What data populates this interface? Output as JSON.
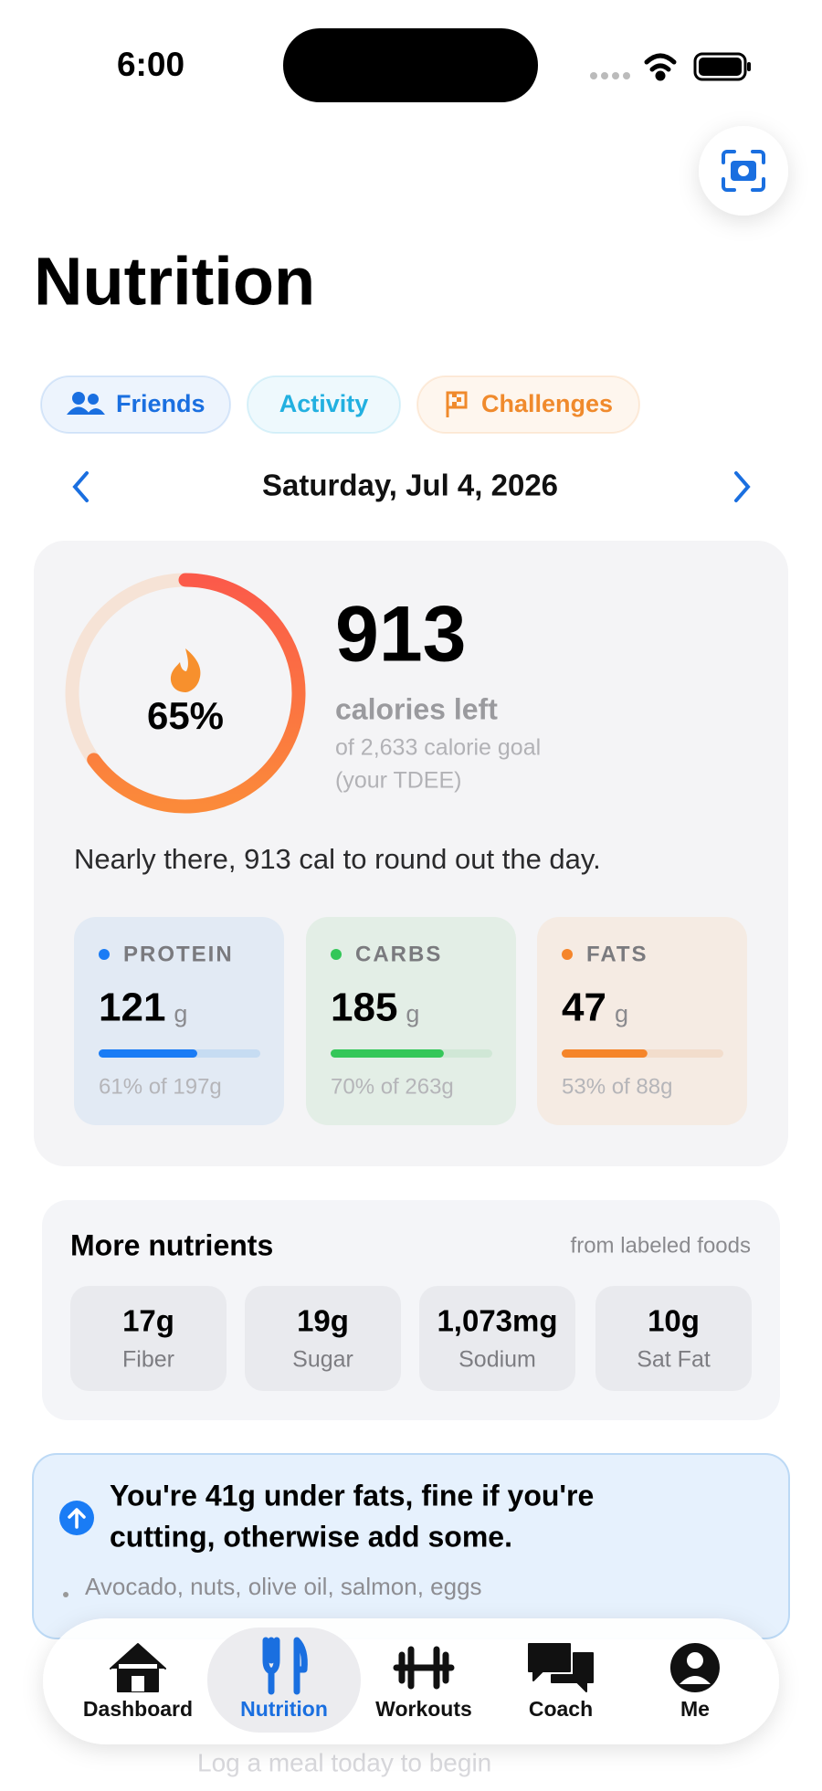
{
  "status_bar": {
    "time": "6:00"
  },
  "header": {
    "title": "Nutrition"
  },
  "chips": [
    {
      "label": "Friends",
      "color": "#1a6fe0"
    },
    {
      "label": "Activity",
      "color": "#22b0e0"
    },
    {
      "label": "Challenges",
      "color": "#f08a2c"
    }
  ],
  "date": "Saturday, Jul 4, 2026",
  "summary": {
    "ring_percent": 65,
    "ring_label": "65%",
    "calories_left": 913,
    "calories_caption": "calories left",
    "goal_text": "of 2,633 calorie goal",
    "goal_note": "(your TDEE)",
    "message": "Nearly there, 913 cal to round out the day."
  },
  "macros": [
    {
      "name": "PROTEIN",
      "value": 121,
      "unit": "g",
      "percent": 61,
      "foot": "61% of 197g",
      "color": "#1a7cf5",
      "bg": "#e2eaf4",
      "track": "#c6dcf2"
    },
    {
      "name": "CARBS",
      "value": 185,
      "unit": "g",
      "percent": 70,
      "foot": "70% of 263g",
      "color": "#34c759",
      "bg": "#e3eee6",
      "track": "#d0e7d6"
    },
    {
      "name": "FATS",
      "value": 47,
      "unit": "g",
      "percent": 53,
      "foot": "53% of 88g",
      "color": "#f5852a",
      "bg": "#f5ebe3",
      "track": "#f2ddcc"
    }
  ],
  "more_nutrients": {
    "title": "More nutrients",
    "note": "from labeled foods",
    "items": [
      {
        "value": "17g",
        "label": "Fiber"
      },
      {
        "value": "19g",
        "label": "Sugar"
      },
      {
        "value": "1,073mg",
        "label": "Sodium"
      },
      {
        "value": "10g",
        "label": "Sat Fat"
      }
    ]
  },
  "tip": {
    "lines": [
      "You're 41g under fats, fine if you're",
      "cutting, otherwise add some."
    ],
    "detail": "Avocado, nuts, olive oil, salmon, eggs"
  },
  "hidden_row": {
    "subtitle": "Log a meal today to begin"
  },
  "nav": [
    {
      "label": "Dashboard"
    },
    {
      "label": "Nutrition",
      "active": true
    },
    {
      "label": "Workouts"
    },
    {
      "label": "Coach"
    },
    {
      "label": "Me"
    }
  ]
}
